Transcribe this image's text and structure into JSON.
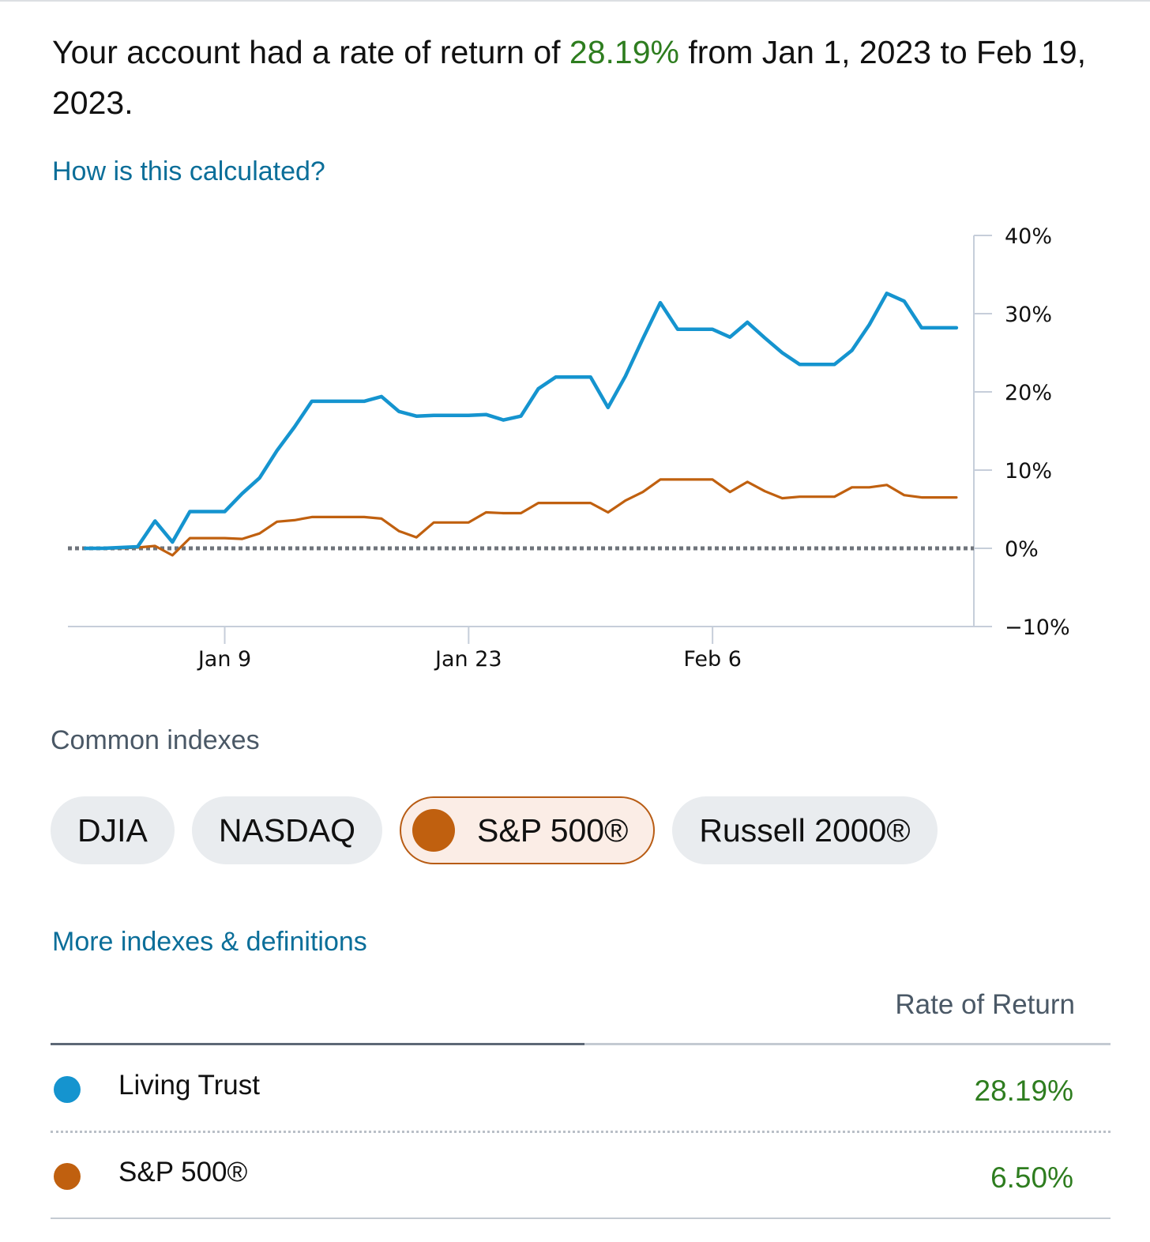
{
  "summary": {
    "prefix": "Your account had a rate of return of ",
    "rate": "28.19%",
    "suffix": " from Jan 1, 2023 to Feb 19, 2023."
  },
  "links": {
    "how_calculated": "How is this calculated?",
    "more_indexes": "More indexes & definitions"
  },
  "colors": {
    "account": "#1594cf",
    "sp500": "#c0600f",
    "positive": "#2e7d1f",
    "link": "#0b6e99"
  },
  "indexes": {
    "label": "Common indexes",
    "chips": [
      "DJIA",
      "NASDAQ",
      "S&P 500®",
      "Russell 2000®"
    ],
    "selected": "S&P 500®"
  },
  "table": {
    "column_header": "Rate of Return",
    "rows": [
      {
        "name": "Living Trust",
        "value": "28.19%"
      },
      {
        "name": "S&P 500®",
        "value": "6.50%"
      }
    ]
  },
  "chart_data": {
    "type": "line",
    "title": "",
    "xlabel": "",
    "ylabel": "",
    "x_ticks": [
      {
        "date": "2023-01-09",
        "label": "Jan 9"
      },
      {
        "date": "2023-01-23",
        "label": "Jan 23"
      },
      {
        "date": "2023-02-06",
        "label": "Feb 6"
      }
    ],
    "y_ticks": [
      40,
      30,
      20,
      10,
      0,
      -10
    ],
    "y_tick_labels": [
      "40%",
      "30%",
      "20%",
      "10%",
      "0%",
      "−10%"
    ],
    "ylim": [
      -10,
      40
    ],
    "xlim": [
      "2022-12-31",
      "2023-02-21"
    ],
    "baseline": 0,
    "grid": false,
    "series": [
      {
        "name": "Living Trust",
        "color": "#1594cf",
        "points": [
          [
            "2023-01-01",
            0
          ],
          [
            "2023-01-02",
            0
          ],
          [
            "2023-01-03",
            0.1
          ],
          [
            "2023-01-04",
            0.2
          ],
          [
            "2023-01-05",
            3.5
          ],
          [
            "2023-01-06",
            0.8
          ],
          [
            "2023-01-07",
            4.7
          ],
          [
            "2023-01-08",
            4.7
          ],
          [
            "2023-01-09",
            4.7
          ],
          [
            "2023-01-10",
            7.0
          ],
          [
            "2023-01-11",
            9.0
          ],
          [
            "2023-01-12",
            12.5
          ],
          [
            "2023-01-13",
            15.5
          ],
          [
            "2023-01-14",
            18.8
          ],
          [
            "2023-01-15",
            18.8
          ],
          [
            "2023-01-16",
            18.8
          ],
          [
            "2023-01-17",
            18.8
          ],
          [
            "2023-01-18",
            19.4
          ],
          [
            "2023-01-19",
            17.5
          ],
          [
            "2023-01-20",
            16.9
          ],
          [
            "2023-01-21",
            17.0
          ],
          [
            "2023-01-22",
            17.0
          ],
          [
            "2023-01-23",
            17.0
          ],
          [
            "2023-01-24",
            17.1
          ],
          [
            "2023-01-25",
            16.4
          ],
          [
            "2023-01-26",
            16.9
          ],
          [
            "2023-01-27",
            20.4
          ],
          [
            "2023-01-28",
            21.9
          ],
          [
            "2023-01-29",
            21.9
          ],
          [
            "2023-01-30",
            21.9
          ],
          [
            "2023-01-31",
            18.0
          ],
          [
            "2023-02-01",
            22.0
          ],
          [
            "2023-02-02",
            26.8
          ],
          [
            "2023-02-03",
            31.4
          ],
          [
            "2023-02-04",
            28.0
          ],
          [
            "2023-02-05",
            28.0
          ],
          [
            "2023-02-06",
            28.0
          ],
          [
            "2023-02-07",
            27.0
          ],
          [
            "2023-02-08",
            28.9
          ],
          [
            "2023-02-09",
            26.9
          ],
          [
            "2023-02-10",
            25.0
          ],
          [
            "2023-02-11",
            23.5
          ],
          [
            "2023-02-12",
            23.5
          ],
          [
            "2023-02-13",
            23.5
          ],
          [
            "2023-02-14",
            25.3
          ],
          [
            "2023-02-15",
            28.6
          ],
          [
            "2023-02-16",
            32.6
          ],
          [
            "2023-02-17",
            31.6
          ],
          [
            "2023-02-18",
            28.19
          ],
          [
            "2023-02-19",
            28.19
          ],
          [
            "2023-02-20",
            28.19
          ]
        ]
      },
      {
        "name": "S&P 500®",
        "color": "#c0600f",
        "points": [
          [
            "2023-01-01",
            0
          ],
          [
            "2023-01-02",
            0
          ],
          [
            "2023-01-03",
            0
          ],
          [
            "2023-01-04",
            0.1
          ],
          [
            "2023-01-05",
            0.3
          ],
          [
            "2023-01-06",
            -0.9
          ],
          [
            "2023-01-07",
            1.3
          ],
          [
            "2023-01-08",
            1.3
          ],
          [
            "2023-01-09",
            1.3
          ],
          [
            "2023-01-10",
            1.2
          ],
          [
            "2023-01-11",
            1.9
          ],
          [
            "2023-01-12",
            3.4
          ],
          [
            "2023-01-13",
            3.6
          ],
          [
            "2023-01-14",
            4.0
          ],
          [
            "2023-01-15",
            4.0
          ],
          [
            "2023-01-16",
            4.0
          ],
          [
            "2023-01-17",
            4.0
          ],
          [
            "2023-01-18",
            3.8
          ],
          [
            "2023-01-19",
            2.2
          ],
          [
            "2023-01-20",
            1.4
          ],
          [
            "2023-01-21",
            3.3
          ],
          [
            "2023-01-22",
            3.3
          ],
          [
            "2023-01-23",
            3.3
          ],
          [
            "2023-01-24",
            4.6
          ],
          [
            "2023-01-25",
            4.5
          ],
          [
            "2023-01-26",
            4.5
          ],
          [
            "2023-01-27",
            5.8
          ],
          [
            "2023-01-28",
            5.8
          ],
          [
            "2023-01-29",
            5.8
          ],
          [
            "2023-01-30",
            5.8
          ],
          [
            "2023-01-31",
            4.6
          ],
          [
            "2023-02-01",
            6.1
          ],
          [
            "2023-02-02",
            7.2
          ],
          [
            "2023-02-03",
            8.8
          ],
          [
            "2023-02-04",
            8.8
          ],
          [
            "2023-02-05",
            8.8
          ],
          [
            "2023-02-06",
            8.8
          ],
          [
            "2023-02-07",
            7.2
          ],
          [
            "2023-02-08",
            8.5
          ],
          [
            "2023-02-09",
            7.3
          ],
          [
            "2023-02-10",
            6.4
          ],
          [
            "2023-02-11",
            6.6
          ],
          [
            "2023-02-12",
            6.6
          ],
          [
            "2023-02-13",
            6.6
          ],
          [
            "2023-02-14",
            7.8
          ],
          [
            "2023-02-15",
            7.8
          ],
          [
            "2023-02-16",
            8.1
          ],
          [
            "2023-02-17",
            6.8
          ],
          [
            "2023-02-18",
            6.5
          ],
          [
            "2023-02-19",
            6.5
          ],
          [
            "2023-02-20",
            6.5
          ]
        ]
      }
    ]
  }
}
